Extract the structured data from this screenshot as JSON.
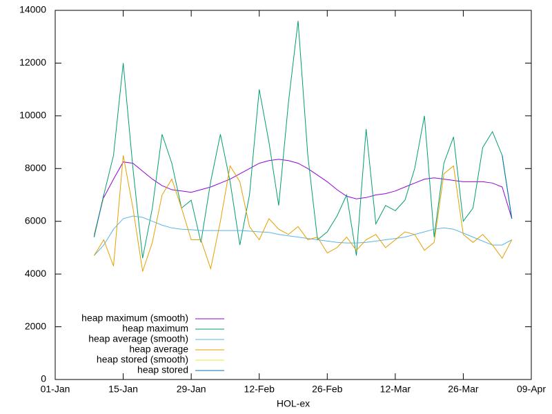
{
  "chart_data": {
    "type": "line",
    "xlabel": "HOL-ex",
    "xlim": [
      "01-Jan",
      "09-Apr"
    ],
    "xticks": [
      "01-Jan",
      "15-Jan",
      "29-Jan",
      "12-Feb",
      "26-Feb",
      "12-Mar",
      "26-Mar",
      "09-Apr"
    ],
    "ylim": [
      0,
      14000
    ],
    "yticks": [
      0,
      2000,
      4000,
      6000,
      8000,
      10000,
      12000,
      14000
    ],
    "legend": "bottom-left",
    "x": [
      "09-Jan",
      "11-Jan",
      "13-Jan",
      "15-Jan",
      "17-Jan",
      "19-Jan",
      "21-Jan",
      "23-Jan",
      "25-Jan",
      "27-Jan",
      "29-Jan",
      "31-Jan",
      "02-Feb",
      "04-Feb",
      "06-Feb",
      "08-Feb",
      "10-Feb",
      "12-Feb",
      "14-Feb",
      "16-Feb",
      "18-Feb",
      "20-Feb",
      "22-Feb",
      "24-Feb",
      "26-Feb",
      "28-Feb",
      "02-Mar",
      "04-Mar",
      "06-Mar",
      "08-Mar",
      "10-Mar",
      "12-Mar",
      "14-Mar",
      "16-Mar",
      "18-Mar",
      "20-Mar",
      "22-Mar",
      "24-Mar",
      "26-Mar",
      "28-Mar",
      "30-Mar",
      "01-Apr",
      "03-Apr",
      "05-Apr"
    ],
    "series": [
      {
        "name": "heap maximum (smooth)",
        "color": "#9400d3",
        "values": [
          5500,
          6900,
          7600,
          8250,
          8200,
          7900,
          7600,
          7350,
          7200,
          7150,
          7100,
          7200,
          7300,
          7450,
          7600,
          7800,
          8000,
          8200,
          8300,
          8350,
          8300,
          8200,
          8000,
          7750,
          7500,
          7200,
          6950,
          6850,
          6900,
          7000,
          7050,
          7150,
          7300,
          7450,
          7600,
          7650,
          7600,
          7550,
          7500,
          7500,
          7500,
          7450,
          7300,
          6100
        ]
      },
      {
        "name": "heap maximum",
        "color": "#009e73",
        "values": [
          5400,
          7000,
          8500,
          12000,
          8000,
          4600,
          6500,
          9300,
          8200,
          6500,
          6800,
          5200,
          7500,
          9300,
          7500,
          5100,
          7000,
          11000,
          9000,
          6600,
          10500,
          13600,
          8500,
          5300,
          5600,
          6200,
          7000,
          4700,
          9500,
          5900,
          6600,
          6400,
          6800,
          8000,
          10000,
          5400,
          8200,
          9200,
          6000,
          6500,
          8800,
          9400,
          8500,
          6100
        ]
      },
      {
        "name": "heap average (smooth)",
        "color": "#56b4e9",
        "values": [
          4700,
          5100,
          5700,
          6100,
          6200,
          6150,
          6000,
          5850,
          5750,
          5700,
          5680,
          5650,
          5650,
          5650,
          5650,
          5650,
          5630,
          5600,
          5580,
          5500,
          5450,
          5400,
          5350,
          5300,
          5250,
          5200,
          5180,
          5180,
          5200,
          5250,
          5300,
          5350,
          5400,
          5500,
          5600,
          5700,
          5750,
          5700,
          5550,
          5400,
          5250,
          5100,
          5100,
          5300
        ]
      },
      {
        "name": "heap average",
        "color": "#e69f00",
        "values": [
          4700,
          5300,
          4300,
          8500,
          6500,
          4100,
          5200,
          7000,
          7600,
          6500,
          5300,
          5300,
          4200,
          6000,
          8100,
          7500,
          5800,
          5300,
          6100,
          5700,
          5500,
          5800,
          5300,
          5400,
          4800,
          5000,
          5400,
          4900,
          5300,
          5500,
          5000,
          5300,
          5600,
          5500,
          4900,
          5200,
          7800,
          8100,
          5500,
          5200,
          5500,
          5100,
          4600,
          5300
        ]
      },
      {
        "name": "heap stored (smooth)",
        "color": "#f0e442",
        "values": [
          5500,
          6900,
          null,
          null,
          null,
          null,
          null,
          null,
          null,
          null,
          null,
          null,
          null,
          null,
          null,
          null,
          null,
          null,
          null,
          null,
          null,
          null,
          null,
          null,
          null,
          null,
          null,
          null,
          null,
          null,
          null,
          null,
          null,
          null,
          null,
          null,
          null,
          null,
          null,
          null,
          null,
          null,
          null,
          null
        ]
      },
      {
        "name": "heap stored",
        "color": "#0072b2",
        "values": [
          5400,
          7000,
          null,
          null,
          null,
          null,
          null,
          null,
          null,
          null,
          null,
          null,
          null,
          null,
          null,
          null,
          null,
          null,
          null,
          null,
          null,
          null,
          null,
          null,
          null,
          null,
          null,
          null,
          null,
          null,
          null,
          null,
          null,
          null,
          null,
          null,
          null,
          null,
          null,
          null,
          null,
          null,
          8500,
          6100
        ]
      }
    ]
  }
}
